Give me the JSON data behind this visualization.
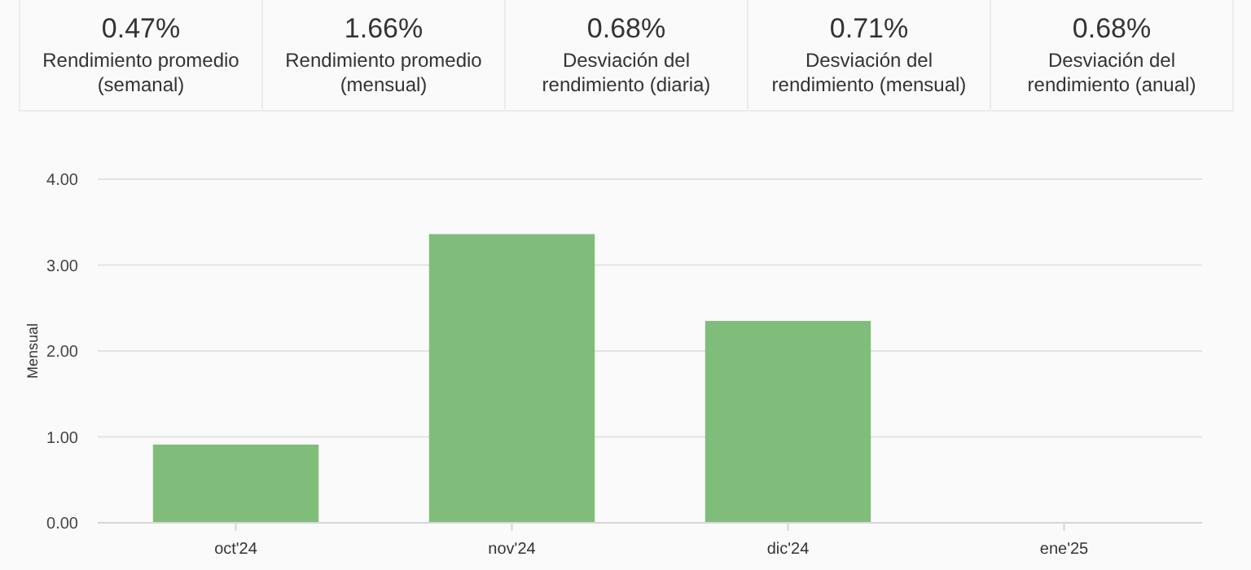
{
  "chart_data": [
    {
      "type": "other",
      "categories": [
        "Rendimiento promedio (semanal)",
        "Rendimiento promedio (mensual)",
        "Desviación del rendimiento (diaria)",
        "Desviación del rendimiento (mensual)",
        "Desviación del rendimiento (anual)"
      ],
      "annotations": [
        "0.47%",
        "1.66%",
        "0.68%",
        "0.71%",
        "0.68%"
      ]
    },
    {
      "type": "bar",
      "ylabel": "Mensual",
      "categories": [
        "oct'24",
        "nov'24",
        "dic'24",
        "ene'25"
      ],
      "values": [
        0.91,
        3.36,
        2.35,
        null
      ],
      "color": "#80bd7b",
      "ylim": [
        0,
        4
      ],
      "yticks": [
        {
          "value": 0,
          "label": "0.00"
        },
        {
          "value": 1,
          "label": "1.00"
        },
        {
          "value": 2,
          "label": "2.00"
        },
        {
          "value": 3,
          "label": "3.00"
        },
        {
          "value": 4,
          "label": "4.00"
        }
      ],
      "grid": "y"
    }
  ]
}
